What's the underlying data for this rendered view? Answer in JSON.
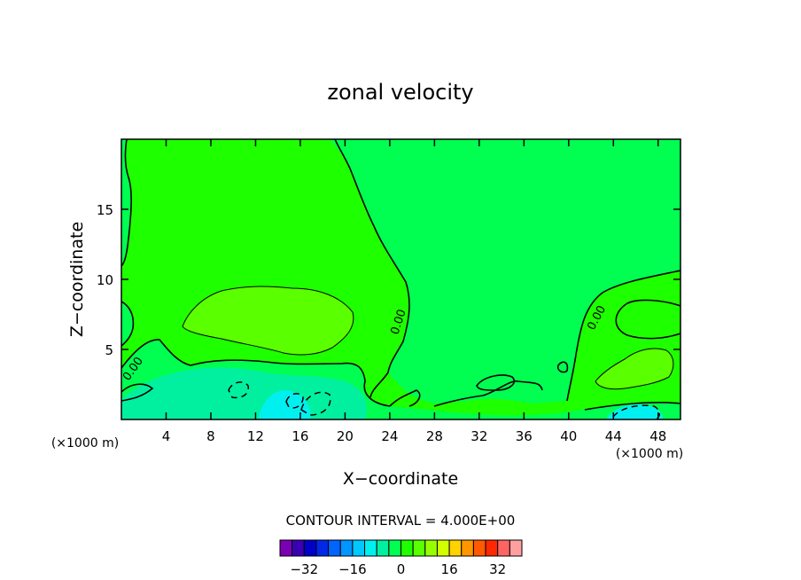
{
  "chart_data": {
    "type": "contour",
    "title": "zonal velocity",
    "xlabel": "X−coordinate",
    "ylabel": "Z−coordinate",
    "x_unit_left": "(×1000 m)",
    "x_unit_right": "(×1000 m)",
    "xlim": [
      0,
      50
    ],
    "ylim": [
      0,
      20
    ],
    "x_ticks": [
      4,
      8,
      12,
      16,
      20,
      24,
      28,
      32,
      36,
      40,
      44,
      48
    ],
    "y_ticks": [
      5,
      10,
      15
    ],
    "contour_labels": [
      "0.00",
      "0.00",
      "0.00"
    ],
    "contour_interval_label": "CONTOUR INTERVAL = 4.000E+00",
    "colorbar": {
      "levels": [
        -36,
        -32,
        -28,
        -24,
        -20,
        -16,
        -12,
        -8,
        -4,
        0,
        4,
        8,
        12,
        16,
        20,
        24,
        28,
        32,
        36
      ],
      "tick_labels": [
        "−32",
        "−16",
        "0",
        "16",
        "32"
      ],
      "tick_values": [
        -32,
        -16,
        0,
        16,
        32
      ],
      "colors": [
        "#7a00b4",
        "#3c00b4",
        "#0000c8",
        "#0028e6",
        "#0064ff",
        "#0096ff",
        "#00c8ff",
        "#00f0f0",
        "#00f0a0",
        "#00ff50",
        "#1eff00",
        "#5aff00",
        "#96ff00",
        "#d2ff00",
        "#ffd200",
        "#ff9600",
        "#ff5a00",
        "#ff2800",
        "#ff6464",
        "#ffa0a0"
      ]
    },
    "regions": {
      "background_color": "#1eff00",
      "zero_band_color": "#00ff50",
      "weak_positive_color": "#5aff00",
      "weak_negative_color": "#00f0a0",
      "moderate_negative_color": "#00f0f0"
    }
  }
}
